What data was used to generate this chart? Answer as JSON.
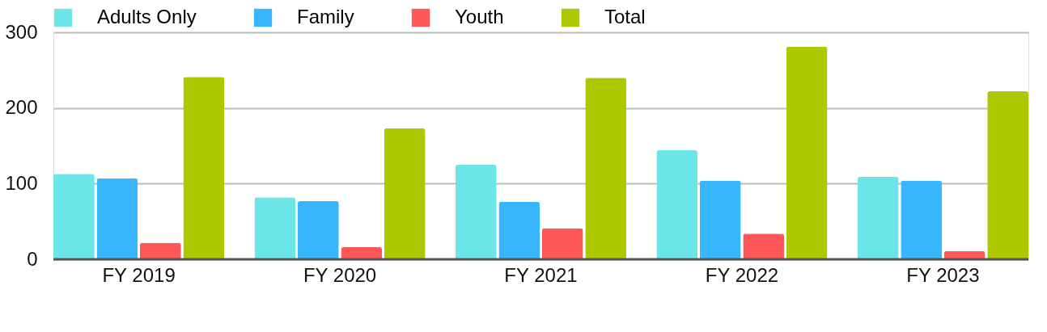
{
  "chart_data": {
    "type": "bar",
    "categories": [
      "FY 2019",
      "FY 2020",
      "FY 2021",
      "FY 2022",
      "FY 2023"
    ],
    "series": [
      {
        "name": "Adults Only",
        "color": "#6ce5e8",
        "values": [
          113,
          82,
          125,
          144,
          109
        ]
      },
      {
        "name": "Family",
        "color": "#38b6ff",
        "values": [
          107,
          77,
          76,
          104,
          104
        ]
      },
      {
        "name": "Youth",
        "color": "#ff5757",
        "values": [
          22,
          16,
          41,
          34,
          11
        ]
      },
      {
        "name": "Total",
        "color": "#adc700",
        "values": [
          241,
          173,
          240,
          281,
          222
        ]
      }
    ],
    "ylim": [
      0,
      300
    ],
    "yticks": [
      0,
      100,
      200,
      300
    ],
    "grid": "y",
    "legend": "top"
  }
}
